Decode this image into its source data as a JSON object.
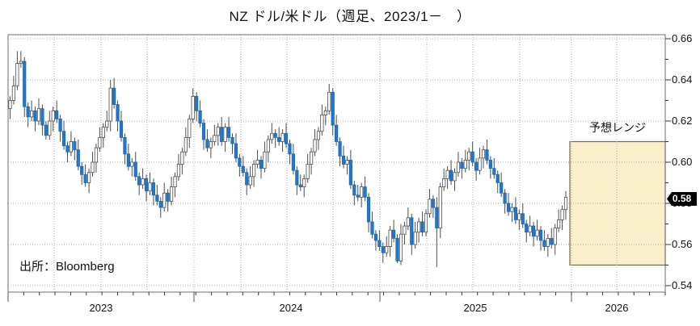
{
  "title": "NZ ドル/米ドル（週足、2023/1－　）",
  "source": "出所：Bloomberg",
  "price_tag": "0.58",
  "forecast": {
    "label": "予想レンジ",
    "range_high": 0.61,
    "range_low": 0.55
  },
  "chart_data": {
    "type": "candlestick",
    "pair": "NZD/USD",
    "interval": "weekly",
    "period_start": "2023/1",
    "title": "NZ ドル/米ドル（週足、2023/1－　）",
    "y_axis": {
      "min": 0.54,
      "max": 0.66,
      "ticks": [
        0.66,
        0.64,
        0.62,
        0.6,
        0.58,
        0.56,
        0.54
      ]
    },
    "x_axis": {
      "year_labels": [
        "2023",
        "2024",
        "2025",
        "2026"
      ]
    },
    "grid": true,
    "legend": "none",
    "last_close": 0.583,
    "colors": {
      "up_fill": "#ffffff",
      "up_border": "#4d4d4d",
      "down_fill": "#2079d0",
      "down_border": "#1a66ad",
      "wick": "#4d4d4d",
      "grid": "#ababab",
      "frame": "#6e6e6e",
      "forecast_fill": "#f9efca",
      "forecast_border": "#6f6a4f",
      "tag_bg": "#000000",
      "tag_text": "#ffffff"
    },
    "candles": [
      [
        0.626,
        0.632,
        0.621,
        0.63
      ],
      [
        0.63,
        0.642,
        0.628,
        0.637
      ],
      [
        0.637,
        0.654,
        0.635,
        0.648
      ],
      [
        0.648,
        0.654,
        0.646,
        0.649
      ],
      [
        0.649,
        0.651,
        0.622,
        0.627
      ],
      [
        0.627,
        0.629,
        0.617,
        0.622
      ],
      [
        0.622,
        0.63,
        0.62,
        0.625
      ],
      [
        0.625,
        0.627,
        0.615,
        0.62
      ],
      [
        0.62,
        0.631,
        0.618,
        0.626
      ],
      [
        0.626,
        0.628,
        0.613,
        0.618
      ],
      [
        0.618,
        0.62,
        0.611,
        0.613
      ],
      [
        0.613,
        0.625,
        0.611,
        0.62
      ],
      [
        0.62,
        0.627,
        0.615,
        0.625
      ],
      [
        0.625,
        0.63,
        0.619,
        0.621
      ],
      [
        0.621,
        0.623,
        0.61,
        0.615
      ],
      [
        0.615,
        0.62,
        0.606,
        0.608
      ],
      [
        0.608,
        0.61,
        0.6,
        0.605
      ],
      [
        0.605,
        0.615,
        0.603,
        0.61
      ],
      [
        0.61,
        0.612,
        0.601,
        0.606
      ],
      [
        0.606,
        0.611,
        0.596,
        0.598
      ],
      [
        0.598,
        0.6,
        0.589,
        0.594
      ],
      [
        0.594,
        0.599,
        0.588,
        0.59
      ],
      [
        0.59,
        0.597,
        0.585,
        0.595
      ],
      [
        0.595,
        0.605,
        0.593,
        0.6
      ],
      [
        0.6,
        0.609,
        0.595,
        0.607
      ],
      [
        0.607,
        0.617,
        0.605,
        0.612
      ],
      [
        0.612,
        0.619,
        0.607,
        0.617
      ],
      [
        0.617,
        0.625,
        0.615,
        0.62
      ],
      [
        0.62,
        0.64,
        0.615,
        0.636
      ],
      [
        0.636,
        0.641,
        0.626,
        0.628
      ],
      [
        0.628,
        0.63,
        0.615,
        0.62
      ],
      [
        0.62,
        0.625,
        0.61,
        0.612
      ],
      [
        0.612,
        0.614,
        0.599,
        0.604
      ],
      [
        0.604,
        0.609,
        0.596,
        0.598
      ],
      [
        0.598,
        0.602,
        0.593,
        0.6
      ],
      [
        0.6,
        0.605,
        0.591,
        0.593
      ],
      [
        0.593,
        0.595,
        0.584,
        0.589
      ],
      [
        0.589,
        0.597,
        0.587,
        0.592
      ],
      [
        0.592,
        0.594,
        0.581,
        0.586
      ],
      [
        0.586,
        0.595,
        0.584,
        0.59
      ],
      [
        0.59,
        0.592,
        0.579,
        0.584
      ],
      [
        0.584,
        0.589,
        0.579,
        0.581
      ],
      [
        0.581,
        0.583,
        0.573,
        0.578
      ],
      [
        0.578,
        0.59,
        0.576,
        0.585
      ],
      [
        0.585,
        0.587,
        0.576,
        0.581
      ],
      [
        0.581,
        0.593,
        0.579,
        0.588
      ],
      [
        0.588,
        0.595,
        0.583,
        0.593
      ],
      [
        0.593,
        0.604,
        0.591,
        0.599
      ],
      [
        0.599,
        0.607,
        0.594,
        0.605
      ],
      [
        0.605,
        0.617,
        0.603,
        0.612
      ],
      [
        0.612,
        0.623,
        0.607,
        0.621
      ],
      [
        0.621,
        0.636,
        0.619,
        0.632
      ],
      [
        0.632,
        0.634,
        0.62,
        0.625
      ],
      [
        0.625,
        0.63,
        0.617,
        0.619
      ],
      [
        0.619,
        0.621,
        0.606,
        0.611
      ],
      [
        0.611,
        0.616,
        0.605,
        0.607
      ],
      [
        0.607,
        0.612,
        0.602,
        0.61
      ],
      [
        0.61,
        0.618,
        0.608,
        0.613
      ],
      [
        0.613,
        0.619,
        0.608,
        0.617
      ],
      [
        0.617,
        0.622,
        0.608,
        0.61
      ],
      [
        0.61,
        0.619,
        0.605,
        0.617
      ],
      [
        0.617,
        0.622,
        0.61,
        0.612
      ],
      [
        0.612,
        0.614,
        0.604,
        0.609
      ],
      [
        0.609,
        0.614,
        0.6,
        0.602
      ],
      [
        0.602,
        0.604,
        0.593,
        0.598
      ],
      [
        0.598,
        0.603,
        0.593,
        0.595
      ],
      [
        0.595,
        0.597,
        0.584,
        0.589
      ],
      [
        0.589,
        0.598,
        0.587,
        0.593
      ],
      [
        0.593,
        0.601,
        0.588,
        0.599
      ],
      [
        0.599,
        0.606,
        0.597,
        0.601
      ],
      [
        0.601,
        0.603,
        0.592,
        0.597
      ],
      [
        0.597,
        0.61,
        0.595,
        0.605
      ],
      [
        0.605,
        0.613,
        0.6,
        0.611
      ],
      [
        0.611,
        0.619,
        0.609,
        0.614
      ],
      [
        0.614,
        0.616,
        0.607,
        0.612
      ],
      [
        0.612,
        0.617,
        0.608,
        0.61
      ],
      [
        0.61,
        0.616,
        0.605,
        0.614
      ],
      [
        0.614,
        0.619,
        0.607,
        0.609
      ],
      [
        0.609,
        0.611,
        0.599,
        0.604
      ],
      [
        0.604,
        0.609,
        0.594,
        0.596
      ],
      [
        0.596,
        0.598,
        0.584,
        0.589
      ],
      [
        0.589,
        0.594,
        0.586,
        0.588
      ],
      [
        0.588,
        0.594,
        0.583,
        0.592
      ],
      [
        0.592,
        0.604,
        0.59,
        0.599
      ],
      [
        0.599,
        0.607,
        0.594,
        0.605
      ],
      [
        0.605,
        0.616,
        0.603,
        0.611
      ],
      [
        0.611,
        0.617,
        0.606,
        0.615
      ],
      [
        0.615,
        0.628,
        0.613,
        0.623
      ],
      [
        0.623,
        0.627,
        0.618,
        0.625
      ],
      [
        0.625,
        0.638,
        0.623,
        0.634
      ],
      [
        0.634,
        0.636,
        0.613,
        0.618
      ],
      [
        0.618,
        0.623,
        0.608,
        0.61
      ],
      [
        0.61,
        0.612,
        0.598,
        0.603
      ],
      [
        0.603,
        0.608,
        0.597,
        0.599
      ],
      [
        0.599,
        0.603,
        0.594,
        0.601
      ],
      [
        0.601,
        0.606,
        0.587,
        0.589
      ],
      [
        0.589,
        0.591,
        0.579,
        0.584
      ],
      [
        0.584,
        0.589,
        0.581,
        0.583
      ],
      [
        0.583,
        0.59,
        0.578,
        0.588
      ],
      [
        0.588,
        0.593,
        0.581,
        0.583
      ],
      [
        0.583,
        0.585,
        0.566,
        0.571
      ],
      [
        0.571,
        0.576,
        0.563,
        0.565
      ],
      [
        0.565,
        0.567,
        0.557,
        0.562
      ],
      [
        0.562,
        0.567,
        0.557,
        0.559
      ],
      [
        0.559,
        0.561,
        0.551,
        0.556
      ],
      [
        0.556,
        0.564,
        0.554,
        0.559
      ],
      [
        0.559,
        0.569,
        0.554,
        0.567
      ],
      [
        0.567,
        0.572,
        0.561,
        0.563
      ],
      [
        0.563,
        0.565,
        0.551,
        0.552
      ],
      [
        0.552,
        0.57,
        0.55,
        0.565
      ],
      [
        0.565,
        0.571,
        0.56,
        0.569
      ],
      [
        0.569,
        0.578,
        0.567,
        0.573
      ],
      [
        0.573,
        0.575,
        0.555,
        0.56
      ],
      [
        0.56,
        0.571,
        0.558,
        0.566
      ],
      [
        0.566,
        0.573,
        0.561,
        0.571
      ],
      [
        0.571,
        0.576,
        0.564,
        0.566
      ],
      [
        0.566,
        0.577,
        0.564,
        0.575
      ],
      [
        0.575,
        0.587,
        0.573,
        0.582
      ],
      [
        0.582,
        0.584,
        0.573,
        0.578
      ],
      [
        0.578,
        0.583,
        0.549,
        0.568
      ],
      [
        0.568,
        0.59,
        0.563,
        0.588
      ],
      [
        0.588,
        0.597,
        0.586,
        0.592
      ],
      [
        0.592,
        0.598,
        0.587,
        0.596
      ],
      [
        0.596,
        0.601,
        0.589,
        0.591
      ],
      [
        0.591,
        0.597,
        0.586,
        0.595
      ],
      [
        0.595,
        0.605,
        0.593,
        0.6
      ],
      [
        0.6,
        0.602,
        0.592,
        0.597
      ],
      [
        0.597,
        0.606,
        0.595,
        0.601
      ],
      [
        0.601,
        0.607,
        0.596,
        0.605
      ],
      [
        0.605,
        0.61,
        0.598,
        0.6
      ],
      [
        0.6,
        0.602,
        0.591,
        0.596
      ],
      [
        0.596,
        0.607,
        0.594,
        0.602
      ],
      [
        0.602,
        0.608,
        0.597,
        0.606
      ],
      [
        0.606,
        0.611,
        0.599,
        0.601
      ],
      [
        0.601,
        0.603,
        0.592,
        0.597
      ],
      [
        0.597,
        0.602,
        0.592,
        0.594
      ],
      [
        0.594,
        0.596,
        0.585,
        0.59
      ],
      [
        0.59,
        0.595,
        0.583,
        0.585
      ],
      [
        0.585,
        0.587,
        0.575,
        0.58
      ],
      [
        0.58,
        0.585,
        0.574,
        0.576
      ],
      [
        0.576,
        0.58,
        0.571,
        0.578
      ],
      [
        0.578,
        0.583,
        0.57,
        0.572
      ],
      [
        0.572,
        0.577,
        0.567,
        0.575
      ],
      [
        0.575,
        0.58,
        0.568,
        0.57
      ],
      [
        0.57,
        0.572,
        0.561,
        0.566
      ],
      [
        0.566,
        0.574,
        0.564,
        0.569
      ],
      [
        0.569,
        0.571,
        0.559,
        0.564
      ],
      [
        0.564,
        0.572,
        0.562,
        0.567
      ],
      [
        0.567,
        0.569,
        0.557,
        0.562
      ],
      [
        0.562,
        0.567,
        0.557,
        0.559
      ],
      [
        0.559,
        0.565,
        0.554,
        0.563
      ],
      [
        0.563,
        0.568,
        0.558,
        0.56
      ],
      [
        0.56,
        0.57,
        0.555,
        0.568
      ],
      [
        0.568,
        0.577,
        0.566,
        0.572
      ],
      [
        0.572,
        0.579,
        0.567,
        0.577
      ],
      [
        0.577,
        0.586,
        0.572,
        0.583
      ]
    ]
  }
}
